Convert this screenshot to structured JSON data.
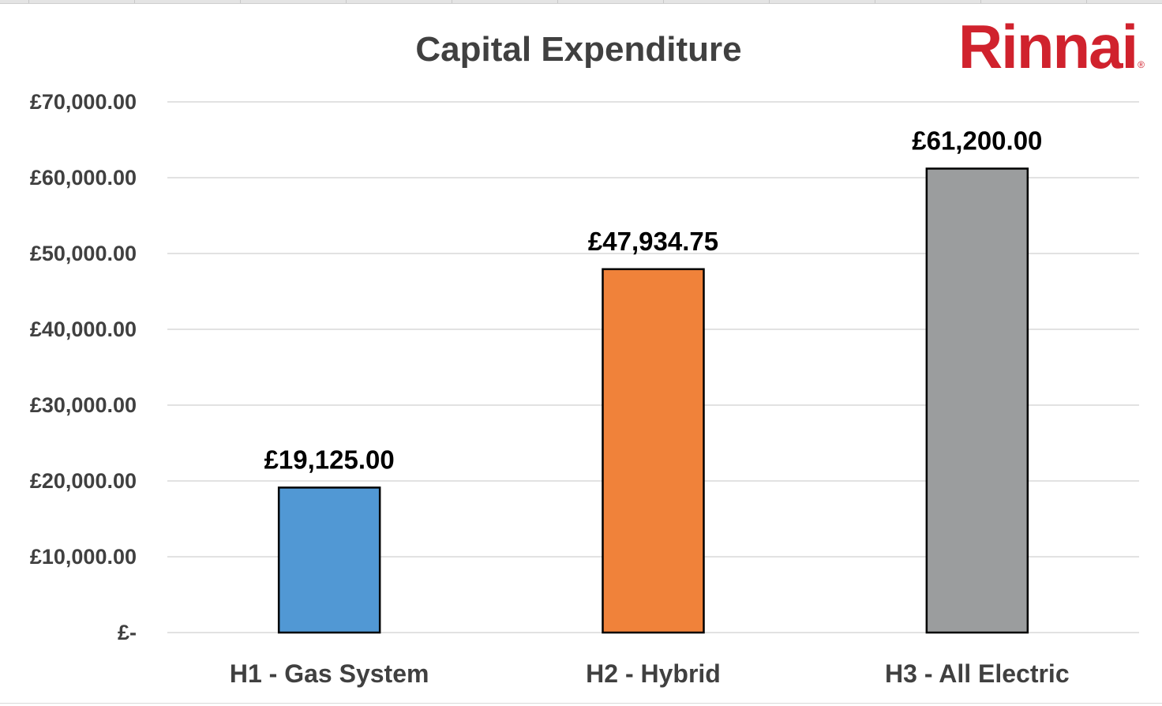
{
  "chart_data": {
    "type": "bar",
    "title": "Capital Expenditure",
    "xlabel": "",
    "ylabel": "",
    "categories": [
      "H1 - Gas System",
      "H2 - Hybrid",
      "H3 - All Electric"
    ],
    "values": [
      19125.0,
      47934.75,
      61200.0
    ],
    "data_labels": [
      "£19,125.00",
      "£47,934.75",
      "£61,200.00"
    ],
    "bar_colors": [
      "#5198d4",
      "#f0823a",
      "#9b9d9e"
    ],
    "ylim": [
      0,
      70000
    ],
    "yticks": [
      0,
      10000,
      20000,
      30000,
      40000,
      50000,
      60000,
      70000
    ],
    "ytick_labels": [
      "£-",
      "£10,000.00",
      "£20,000.00",
      "£30,000.00",
      "£40,000.00",
      "£50,000.00",
      "£60,000.00",
      "£70,000.00"
    ],
    "grid": true,
    "legend": "none"
  },
  "brand": {
    "logo_text": "Rinnai",
    "logo_mark": "®",
    "color": "#d0222d"
  },
  "colors": {
    "text": "#404040",
    "grid": "#d9d9d9",
    "bar_outline": "#000000"
  }
}
